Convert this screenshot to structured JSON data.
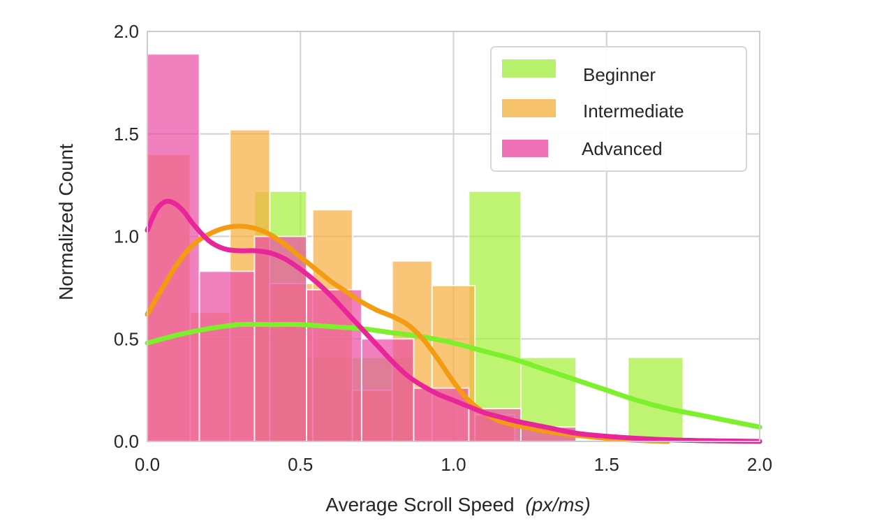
{
  "chart_data": {
    "type": "histogram",
    "title": "",
    "xlabel": "Average Scroll Speed",
    "xlabel_unit": "(px/ms)",
    "ylabel": "Normalized Count",
    "xlim": [
      0.0,
      2.0
    ],
    "ylim": [
      0.0,
      2.0
    ],
    "xticks": [
      "0.0",
      "0.5",
      "1.0",
      "1.5",
      "2.0"
    ],
    "yticks": [
      "0.0",
      "0.5",
      "1.0",
      "1.5",
      "2.0"
    ],
    "grid": true,
    "legend_position": "upper right",
    "series": [
      {
        "name": "Beginner",
        "color": "#a6f03c",
        "kde_color": "#7cf02a",
        "bars": [
          {
            "x0": 0.0,
            "x1": 0.17,
            "height": 0.0
          },
          {
            "x0": 0.17,
            "x1": 0.35,
            "height": 0.0
          },
          {
            "x0": 0.35,
            "x1": 0.52,
            "height": 1.22
          },
          {
            "x0": 0.52,
            "x1": 0.7,
            "height": 0.41
          },
          {
            "x0": 0.7,
            "x1": 0.87,
            "height": 0.41
          },
          {
            "x0": 0.87,
            "x1": 1.05,
            "height": 0.0
          },
          {
            "x0": 1.05,
            "x1": 1.22,
            "height": 1.22
          },
          {
            "x0": 1.22,
            "x1": 1.4,
            "height": 0.41
          },
          {
            "x0": 1.4,
            "x1": 1.57,
            "height": 0.0
          },
          {
            "x0": 1.57,
            "x1": 1.75,
            "height": 0.41
          }
        ],
        "kde": [
          [
            0.0,
            0.48
          ],
          [
            0.1,
            0.52
          ],
          [
            0.2,
            0.55
          ],
          [
            0.3,
            0.57
          ],
          [
            0.4,
            0.57
          ],
          [
            0.5,
            0.57
          ],
          [
            0.6,
            0.56
          ],
          [
            0.7,
            0.55
          ],
          [
            0.8,
            0.53
          ],
          [
            0.9,
            0.51
          ],
          [
            1.0,
            0.48
          ],
          [
            1.1,
            0.44
          ],
          [
            1.2,
            0.4
          ],
          [
            1.3,
            0.35
          ],
          [
            1.4,
            0.3
          ],
          [
            1.5,
            0.25
          ],
          [
            1.6,
            0.2
          ],
          [
            1.7,
            0.16
          ],
          [
            1.8,
            0.13
          ],
          [
            1.9,
            0.1
          ],
          [
            2.0,
            0.07
          ]
        ]
      },
      {
        "name": "Intermediate",
        "color": "#f5b041",
        "kde_color": "#f39c12",
        "bars": [
          {
            "x0": 0.0,
            "x1": 0.14,
            "height": 1.4
          },
          {
            "x0": 0.14,
            "x1": 0.27,
            "height": 0.63
          },
          {
            "x0": 0.27,
            "x1": 0.4,
            "height": 1.52
          },
          {
            "x0": 0.4,
            "x1": 0.54,
            "height": 0.77
          },
          {
            "x0": 0.54,
            "x1": 0.67,
            "height": 1.13
          },
          {
            "x0": 0.67,
            "x1": 0.8,
            "height": 0.25
          },
          {
            "x0": 0.8,
            "x1": 0.93,
            "height": 0.88
          },
          {
            "x0": 0.93,
            "x1": 1.07,
            "height": 0.76
          },
          {
            "x0": 1.07,
            "x1": 1.2,
            "height": 0.13
          },
          {
            "x0": 1.2,
            "x1": 1.33,
            "height": 0.0
          },
          {
            "x0": 1.33,
            "x1": 1.47,
            "height": 0.0
          }
        ],
        "kde": [
          [
            0.0,
            0.62
          ],
          [
            0.05,
            0.75
          ],
          [
            0.1,
            0.87
          ],
          [
            0.15,
            0.96
          ],
          [
            0.2,
            1.01
          ],
          [
            0.25,
            1.04
          ],
          [
            0.3,
            1.05
          ],
          [
            0.35,
            1.04
          ],
          [
            0.4,
            1.01
          ],
          [
            0.45,
            0.96
          ],
          [
            0.5,
            0.9
          ],
          [
            0.55,
            0.84
          ],
          [
            0.6,
            0.78
          ],
          [
            0.65,
            0.73
          ],
          [
            0.7,
            0.68
          ],
          [
            0.75,
            0.64
          ],
          [
            0.8,
            0.61
          ],
          [
            0.85,
            0.57
          ],
          [
            0.9,
            0.5
          ],
          [
            0.95,
            0.4
          ],
          [
            1.0,
            0.29
          ],
          [
            1.05,
            0.2
          ],
          [
            1.1,
            0.14
          ],
          [
            1.15,
            0.1
          ],
          [
            1.2,
            0.08
          ],
          [
            1.3,
            0.05
          ],
          [
            1.4,
            0.03
          ],
          [
            1.5,
            0.015
          ],
          [
            1.6,
            0.005
          ],
          [
            1.7,
            0.0
          ]
        ]
      },
      {
        "name": "Advanced",
        "color": "#ec4fa6",
        "kde_color": "#e8269a",
        "bars": [
          {
            "x0": 0.0,
            "x1": 0.17,
            "height": 1.89
          },
          {
            "x0": 0.17,
            "x1": 0.35,
            "height": 0.83
          },
          {
            "x0": 0.35,
            "x1": 0.52,
            "height": 1.0
          },
          {
            "x0": 0.52,
            "x1": 0.7,
            "height": 0.74
          },
          {
            "x0": 0.7,
            "x1": 0.87,
            "height": 0.5
          },
          {
            "x0": 0.87,
            "x1": 1.05,
            "height": 0.26
          },
          {
            "x0": 1.05,
            "x1": 1.22,
            "height": 0.16
          },
          {
            "x0": 1.22,
            "x1": 1.4,
            "height": 0.07
          },
          {
            "x0": 1.4,
            "x1": 1.57,
            "height": 0.0
          }
        ],
        "kde": [
          [
            0.0,
            1.03
          ],
          [
            0.03,
            1.13
          ],
          [
            0.06,
            1.17
          ],
          [
            0.09,
            1.16
          ],
          [
            0.12,
            1.12
          ],
          [
            0.15,
            1.06
          ],
          [
            0.2,
            0.98
          ],
          [
            0.25,
            0.94
          ],
          [
            0.3,
            0.93
          ],
          [
            0.35,
            0.93
          ],
          [
            0.4,
            0.92
          ],
          [
            0.45,
            0.89
          ],
          [
            0.5,
            0.84
          ],
          [
            0.55,
            0.78
          ],
          [
            0.6,
            0.71
          ],
          [
            0.65,
            0.63
          ],
          [
            0.7,
            0.55
          ],
          [
            0.75,
            0.47
          ],
          [
            0.8,
            0.39
          ],
          [
            0.85,
            0.32
          ],
          [
            0.9,
            0.27
          ],
          [
            0.95,
            0.23
          ],
          [
            1.0,
            0.2
          ],
          [
            1.05,
            0.17
          ],
          [
            1.1,
            0.14
          ],
          [
            1.15,
            0.12
          ],
          [
            1.2,
            0.1
          ],
          [
            1.3,
            0.07
          ],
          [
            1.4,
            0.04
          ],
          [
            1.5,
            0.025
          ],
          [
            1.6,
            0.015
          ],
          [
            1.7,
            0.008
          ],
          [
            1.8,
            0.004
          ],
          [
            1.9,
            0.002
          ],
          [
            2.0,
            0.0
          ]
        ]
      }
    ]
  },
  "axes": {
    "xlabel": "Average Scroll Speed",
    "xlabel_unit": "(px/ms)",
    "ylabel": "Normalized Count"
  },
  "legend": {
    "items": [
      {
        "label": "Beginner",
        "color": "#b7f06b"
      },
      {
        "label": "Intermediate",
        "color": "#f6c36a"
      },
      {
        "label": "Advanced",
        "color": "#ee6fb5"
      }
    ]
  }
}
